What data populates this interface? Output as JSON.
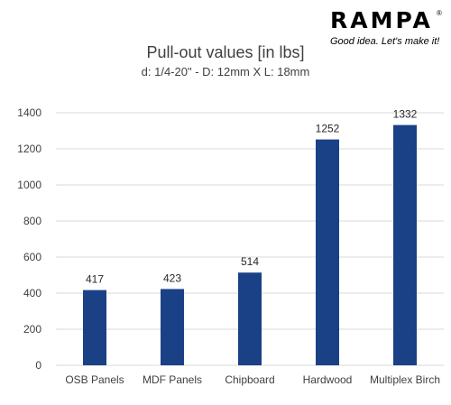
{
  "logo": {
    "wordmark": "RAMPA",
    "registered": "®",
    "tagline": "Good idea. Let's make it!"
  },
  "colors": {
    "bar": "#1a4186",
    "grid": "#d9d9d9",
    "text": "#404040"
  },
  "chart_data": {
    "type": "bar",
    "title": "Pull-out values [in lbs]",
    "subtitle": "d: 1/4-20\" - D: 12mm X L: 18mm",
    "categories": [
      "OSB Panels",
      "MDF Panels",
      "Chipboard",
      "Hardwood",
      "Multiplex Birch"
    ],
    "values": [
      417,
      423,
      514,
      1252,
      1332
    ],
    "ylim": [
      0,
      1400
    ],
    "yticks": [
      0,
      200,
      400,
      600,
      800,
      1000,
      1200,
      1400
    ],
    "grid": true,
    "data_labels": true,
    "xlabel": "",
    "ylabel": ""
  }
}
